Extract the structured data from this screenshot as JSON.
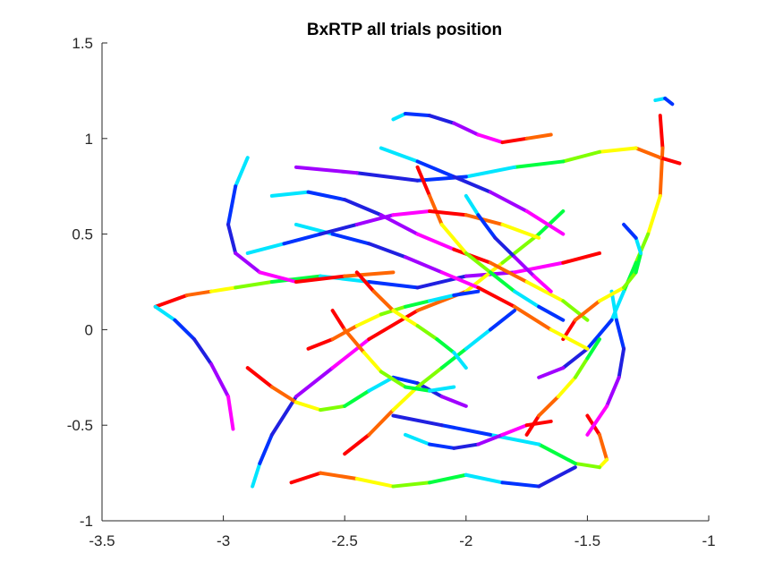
{
  "chart_data": {
    "type": "line",
    "title": "BxRTP all trials position",
    "xlabel": "",
    "ylabel": "",
    "xlim": [
      -3.5,
      -1
    ],
    "ylim": [
      -1,
      1.5
    ],
    "xticks": [
      -3.5,
      -3,
      -2.5,
      -2,
      -1.5,
      -1
    ],
    "yticks": [
      -1,
      -0.5,
      0,
      0.5,
      1,
      1.5
    ],
    "xtick_labels": [
      "-3.5",
      "-3",
      "-2.5",
      "-2",
      "-1.5",
      "-1"
    ],
    "ytick_labels": [
      "-1",
      "-0.5",
      "0",
      "0.5",
      "1",
      "1.5"
    ],
    "grid": false,
    "legend": "none",
    "colormap": [
      "#ff0000",
      "#ff6600",
      "#ffff00",
      "#80ff00",
      "#00ff40",
      "#00e5ff",
      "#0033ff",
      "#2020e0",
      "#a000ff",
      "#ff00ff"
    ],
    "series": [
      {
        "x": [
          -3.28,
          -3.15,
          -3.05,
          -2.95,
          -2.8,
          -2.6,
          -2.4,
          -2.2,
          -2.0,
          -1.8,
          -1.6,
          -1.45
        ],
        "y": [
          0.12,
          0.18,
          0.2,
          0.22,
          0.25,
          0.28,
          0.25,
          0.22,
          0.28,
          0.3,
          0.35,
          0.4
        ]
      },
      {
        "x": [
          -3.28,
          -3.2,
          -3.12,
          -3.05,
          -2.98,
          -2.96
        ],
        "y": [
          0.12,
          0.05,
          -0.05,
          -0.18,
          -0.35,
          -0.52
        ]
      },
      {
        "x": [
          -1.2,
          -1.19,
          -1.2,
          -1.25,
          -1.3,
          -1.35,
          -1.4,
          -1.5,
          -1.6,
          -1.7
        ],
        "y": [
          1.12,
          0.95,
          0.7,
          0.5,
          0.35,
          0.2,
          0.05,
          -0.1,
          -0.2,
          -0.25
        ]
      },
      {
        "x": [
          -1.22,
          -1.18,
          -1.15
        ],
        "y": [
          1.2,
          1.21,
          1.18
        ]
      },
      {
        "x": [
          -1.12,
          -1.2,
          -1.3,
          -1.45,
          -1.6,
          -1.8,
          -2.0,
          -2.2,
          -2.45,
          -2.7
        ],
        "y": [
          0.87,
          0.9,
          0.95,
          0.93,
          0.88,
          0.85,
          0.8,
          0.78,
          0.82,
          0.85
        ]
      },
      {
        "x": [
          -2.88,
          -2.85,
          -2.8,
          -2.7,
          -2.55,
          -2.4,
          -2.2,
          -2.0,
          -1.85,
          -1.7,
          -1.6
        ],
        "y": [
          -0.82,
          -0.7,
          -0.55,
          -0.35,
          -0.2,
          -0.05,
          0.1,
          0.2,
          0.35,
          0.5,
          0.62
        ]
      },
      {
        "x": [
          -2.72,
          -2.6,
          -2.45,
          -2.3,
          -2.15,
          -2.0,
          -1.85,
          -1.7,
          -1.55
        ],
        "y": [
          -0.8,
          -0.75,
          -0.78,
          -0.82,
          -0.8,
          -0.76,
          -0.8,
          -0.82,
          -0.72
        ]
      },
      {
        "x": [
          -2.9,
          -2.95,
          -2.98,
          -2.95,
          -2.85,
          -2.7,
          -2.5,
          -2.3
        ],
        "y": [
          0.9,
          0.75,
          0.55,
          0.4,
          0.3,
          0.25,
          0.28,
          0.3
        ]
      },
      {
        "x": [
          -1.5,
          -1.45,
          -1.42,
          -1.45,
          -1.55,
          -1.7,
          -1.9,
          -2.1,
          -2.3
        ],
        "y": [
          -0.45,
          -0.55,
          -0.68,
          -0.72,
          -0.7,
          -0.6,
          -0.55,
          -0.5,
          -0.45
        ]
      },
      {
        "x": [
          -2.8,
          -2.65,
          -2.5,
          -2.35,
          -2.2,
          -2.05,
          -1.9,
          -1.75,
          -1.6,
          -1.5
        ],
        "y": [
          0.7,
          0.72,
          0.68,
          0.6,
          0.5,
          0.42,
          0.35,
          0.25,
          0.15,
          0.05
        ]
      },
      {
        "x": [
          -2.9,
          -2.8,
          -2.7,
          -2.6,
          -2.5,
          -2.4,
          -2.3,
          -2.2,
          -2.1,
          -2.0
        ],
        "y": [
          -0.2,
          -0.3,
          -0.38,
          -0.42,
          -0.4,
          -0.32,
          -0.25,
          -0.28,
          -0.35,
          -0.4
        ]
      },
      {
        "x": [
          -2.3,
          -2.25,
          -2.15,
          -2.05,
          -1.95,
          -1.85,
          -1.75,
          -1.65
        ],
        "y": [
          1.1,
          1.13,
          1.12,
          1.08,
          1.02,
          0.98,
          1.0,
          1.02
        ]
      },
      {
        "x": [
          -2.2,
          -2.15,
          -2.1,
          -2.0,
          -1.9,
          -1.8,
          -1.7,
          -1.6
        ],
        "y": [
          0.85,
          0.7,
          0.55,
          0.4,
          0.3,
          0.2,
          0.12,
          0.05
        ]
      },
      {
        "x": [
          -1.4,
          -1.38,
          -1.35,
          -1.37,
          -1.42,
          -1.5
        ],
        "y": [
          0.2,
          0.05,
          -0.1,
          -0.25,
          -0.4,
          -0.55
        ]
      },
      {
        "x": [
          -1.6,
          -1.55,
          -1.45,
          -1.35,
          -1.3,
          -1.28,
          -1.3,
          -1.35
        ],
        "y": [
          -0.05,
          0.05,
          0.15,
          0.22,
          0.3,
          0.4,
          0.48,
          0.55
        ]
      },
      {
        "x": [
          -2.7,
          -2.55,
          -2.4,
          -2.25,
          -2.1,
          -1.95,
          -1.8,
          -1.65,
          -1.5
        ],
        "y": [
          0.55,
          0.5,
          0.45,
          0.38,
          0.3,
          0.22,
          0.12,
          0.0,
          -0.1
        ]
      },
      {
        "x": [
          -2.5,
          -2.4,
          -2.3,
          -2.2,
          -2.1,
          -2.0,
          -1.9,
          -1.8
        ],
        "y": [
          -0.65,
          -0.55,
          -0.42,
          -0.3,
          -0.2,
          -0.1,
          0.0,
          0.1
        ]
      },
      {
        "x": [
          -2.35,
          -2.2,
          -2.05,
          -1.9,
          -1.75,
          -1.6
        ],
        "y": [
          0.95,
          0.88,
          0.8,
          0.72,
          0.62,
          0.5
        ]
      },
      {
        "x": [
          -2.55,
          -2.5,
          -2.42,
          -2.35,
          -2.25,
          -2.15,
          -2.05
        ],
        "y": [
          0.1,
          0.0,
          -0.12,
          -0.22,
          -0.3,
          -0.32,
          -0.3
        ]
      },
      {
        "x": [
          -2.9,
          -2.75,
          -2.6,
          -2.45,
          -2.3,
          -2.15,
          -2.0,
          -1.85,
          -1.7
        ],
        "y": [
          0.4,
          0.45,
          0.5,
          0.55,
          0.6,
          0.62,
          0.6,
          0.55,
          0.48
        ]
      },
      {
        "x": [
          -1.75,
          -1.7,
          -1.62,
          -1.55,
          -1.5,
          -1.45
        ],
        "y": [
          -0.55,
          -0.45,
          -0.35,
          -0.25,
          -0.15,
          -0.05
        ]
      },
      {
        "x": [
          -2.0,
          -1.95,
          -1.88,
          -1.8,
          -1.72,
          -1.65
        ],
        "y": [
          0.7,
          0.6,
          0.48,
          0.38,
          0.28,
          0.2
        ]
      },
      {
        "x": [
          -2.65,
          -2.55,
          -2.45,
          -2.35,
          -2.25,
          -2.15,
          -2.05,
          -1.95
        ],
        "y": [
          -0.1,
          -0.05,
          0.02,
          0.08,
          0.12,
          0.15,
          0.18,
          0.2
        ]
      },
      {
        "x": [
          -2.25,
          -2.15,
          -2.05,
          -1.95,
          -1.85,
          -1.75,
          -1.65
        ],
        "y": [
          -0.55,
          -0.6,
          -0.62,
          -0.6,
          -0.55,
          -0.5,
          -0.48
        ]
      },
      {
        "x": [
          -2.45,
          -2.38,
          -2.3,
          -2.2,
          -2.12,
          -2.05,
          -2.0
        ],
        "y": [
          0.3,
          0.2,
          0.1,
          0.02,
          -0.05,
          -0.12,
          -0.2
        ]
      }
    ]
  }
}
